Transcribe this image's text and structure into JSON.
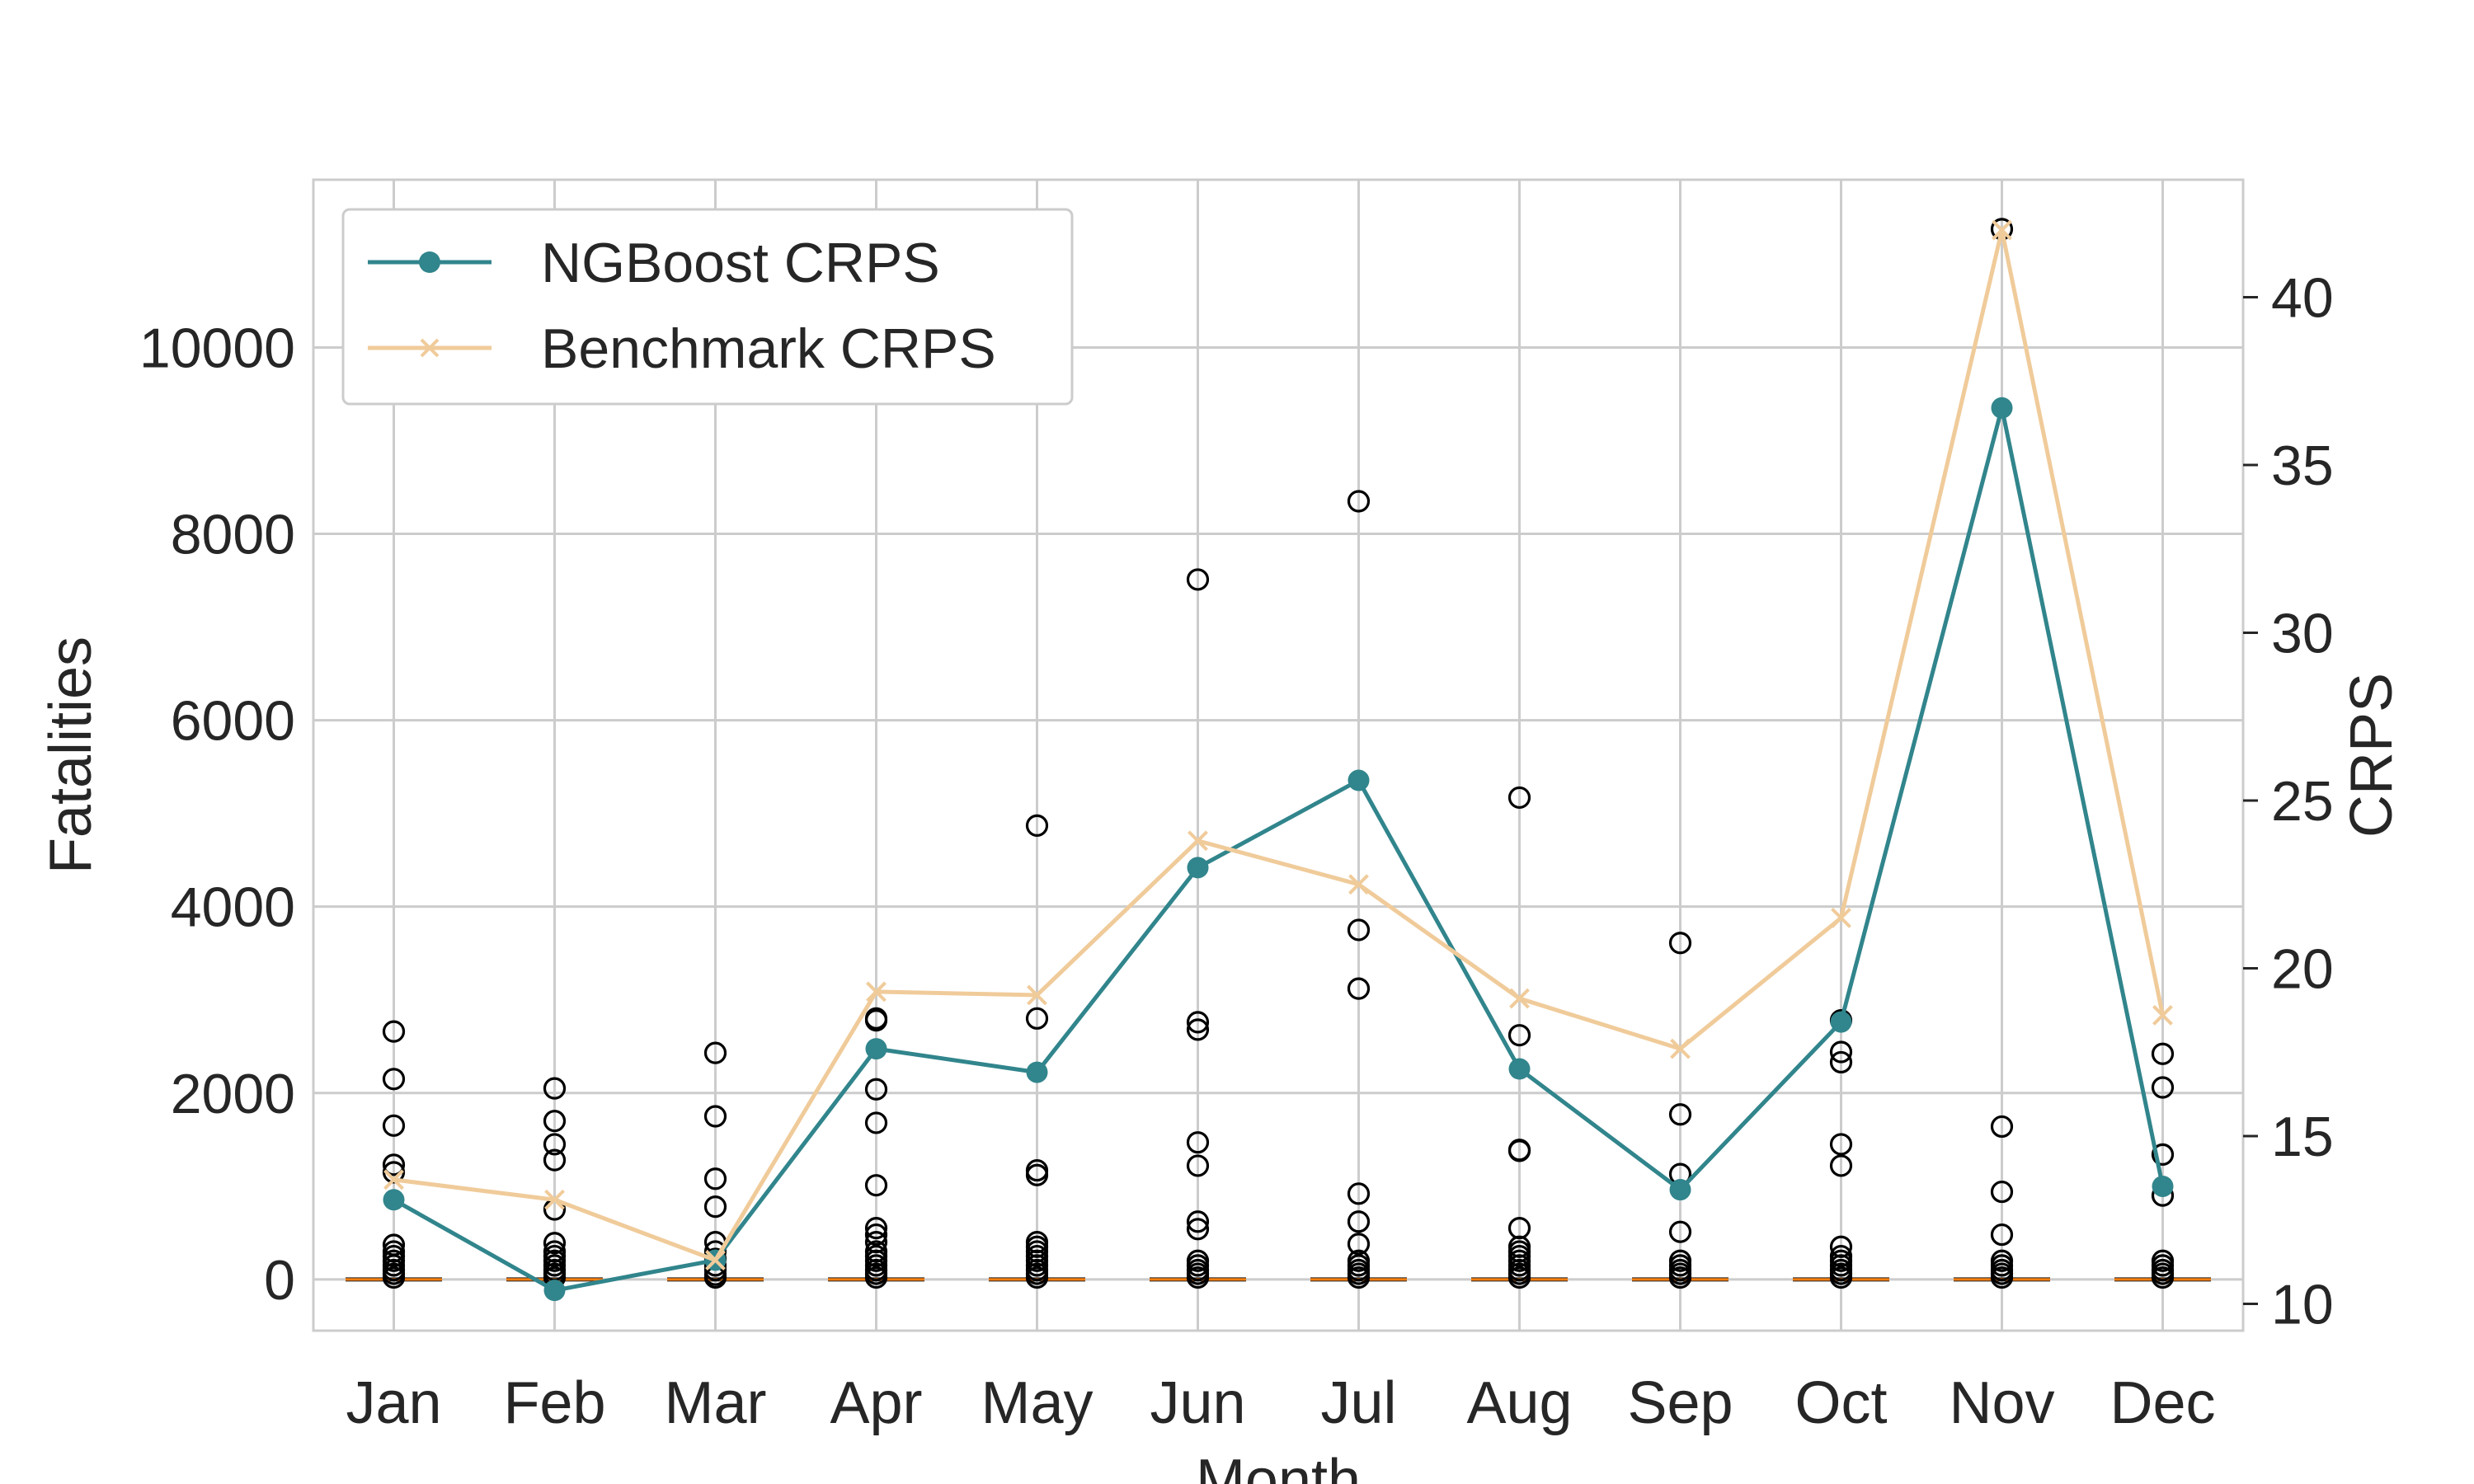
{
  "chart_data": {
    "type": "line",
    "categories": [
      "Jan",
      "Feb",
      "Mar",
      "Apr",
      "May",
      "Jun",
      "Jul",
      "Aug",
      "Sep",
      "Oct",
      "Nov",
      "Dec"
    ],
    "xlabel": "Month",
    "ylabel_left": "Fatalities",
    "ylabel_right": "CRPS",
    "ylim_left": [
      -550,
      11800
    ],
    "ylim_right": [
      9.2,
      43.5
    ],
    "yticks_left": [
      0,
      2000,
      4000,
      6000,
      8000,
      10000
    ],
    "yticks_right": [
      10,
      15,
      20,
      25,
      30,
      35,
      40
    ],
    "grid": true,
    "legend_position": "top-left",
    "series": [
      {
        "name": "NGBoost CRPS",
        "axis": "right",
        "color": "#31858c",
        "marker": "circle",
        "values": [
          13.1,
          10.4,
          11.3,
          17.6,
          16.9,
          23.0,
          25.6,
          17.0,
          13.4,
          18.4,
          36.7,
          13.5
        ]
      },
      {
        "name": "Benchmark CRPS",
        "axis": "right",
        "color": "#f0cb9a",
        "marker": "x",
        "values": [
          13.7,
          13.1,
          11.3,
          19.3,
          19.2,
          23.8,
          22.5,
          19.1,
          17.6,
          21.5,
          42.0,
          18.6
        ]
      }
    ],
    "boxplot_outliers": {
      "axis": "left",
      "note": "Fatalities distribution per month (box plot, boxes collapsed at 0, outliers shown as open circles)",
      "values": [
        [
          2660,
          2150,
          1650,
          1230,
          1150,
          370,
          300,
          250,
          200,
          150,
          100,
          60,
          20
        ],
        [
          2050,
          1700,
          1450,
          1280,
          750,
          390,
          300,
          250,
          200,
          150,
          100,
          60,
          20
        ],
        [
          2430,
          1750,
          1080,
          780,
          400,
          300,
          220,
          150,
          100,
          50,
          20
        ],
        [
          2800,
          2780,
          2040,
          1680,
          1010,
          550,
          480,
          400,
          300,
          250,
          200,
          150,
          100,
          60,
          20
        ],
        [
          4870,
          2800,
          1170,
          1120,
          400,
          350,
          300,
          250,
          200,
          150,
          100,
          60,
          20
        ],
        [
          7510,
          2760,
          2680,
          1470,
          1220,
          620,
          540,
          200,
          150,
          100,
          60,
          20
        ],
        [
          8350,
          3750,
          3120,
          920,
          620,
          380,
          200,
          150,
          100,
          60,
          20
        ],
        [
          5170,
          2620,
          1390,
          1380,
          550,
          350,
          300,
          250,
          200,
          150,
          100,
          60,
          20
        ],
        [
          3610,
          1770,
          1130,
          510,
          200,
          150,
          100,
          60,
          20
        ],
        [
          2780,
          2440,
          2330,
          1450,
          1220,
          350,
          250,
          200,
          150,
          100,
          60,
          20
        ],
        [
          11270,
          1640,
          940,
          480,
          200,
          150,
          100,
          60,
          20
        ],
        [
          2420,
          2060,
          1340,
          900,
          200,
          150,
          100,
          60,
          20
        ]
      ]
    }
  }
}
